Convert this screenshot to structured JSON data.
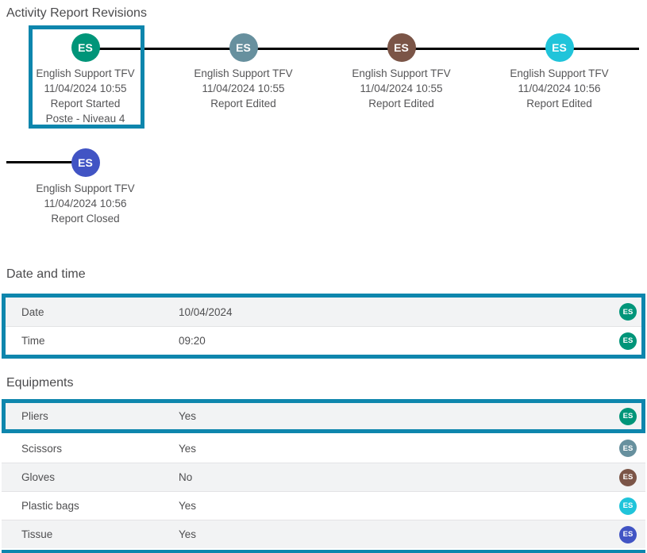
{
  "title": "Activity Report Revisions",
  "colors": {
    "highlight_border": "#0e86ad",
    "avatar_teal": "#009579",
    "avatar_slate": "#67909e",
    "avatar_brown": "#7b5547",
    "avatar_cyan": "#20c4da",
    "avatar_indigo": "#4154c4"
  },
  "timeline": {
    "entries": [
      {
        "initials": "ES",
        "color": "#009579",
        "name": "English Support TFV",
        "datetime": "11/04/2024 10:55",
        "action": "Report Started",
        "extra": "Poste - Niveau 4",
        "highlighted": true
      },
      {
        "initials": "ES",
        "color": "#67909e",
        "name": "English Support TFV",
        "datetime": "11/04/2024 10:55",
        "action": "Report Edited"
      },
      {
        "initials": "ES",
        "color": "#7b5547",
        "name": "English Support TFV",
        "datetime": "11/04/2024 10:55",
        "action": "Report Edited"
      },
      {
        "initials": "ES",
        "color": "#20c4da",
        "name": "English Support TFV",
        "datetime": "11/04/2024 10:56",
        "action": "Report Edited"
      },
      {
        "initials": "ES",
        "color": "#4154c4",
        "name": "English Support TFV",
        "datetime": "11/04/2024 10:56",
        "action": "Report Closed"
      }
    ]
  },
  "sections": {
    "datetime": {
      "header": "Date and time",
      "rows": [
        {
          "label": "Date",
          "value": "10/04/2024",
          "badge": "ES",
          "badge_color": "#009579"
        },
        {
          "label": "Time",
          "value": "09:20",
          "badge": "ES",
          "badge_color": "#009579"
        }
      ]
    },
    "equipments": {
      "header": "Equipments",
      "rows": [
        {
          "label": "Pliers",
          "value": "Yes",
          "badge": "ES",
          "badge_color": "#009579",
          "highlighted": true
        },
        {
          "label": "Scissors",
          "value": "Yes",
          "badge": "ES",
          "badge_color": "#67909e"
        },
        {
          "label": "Gloves",
          "value": "No",
          "badge": "ES",
          "badge_color": "#7b5547"
        },
        {
          "label": "Plastic bags",
          "value": "Yes",
          "badge": "ES",
          "badge_color": "#20c4da"
        },
        {
          "label": "Tissue",
          "value": "Yes",
          "badge": "ES",
          "badge_color": "#4154c4"
        }
      ]
    }
  }
}
